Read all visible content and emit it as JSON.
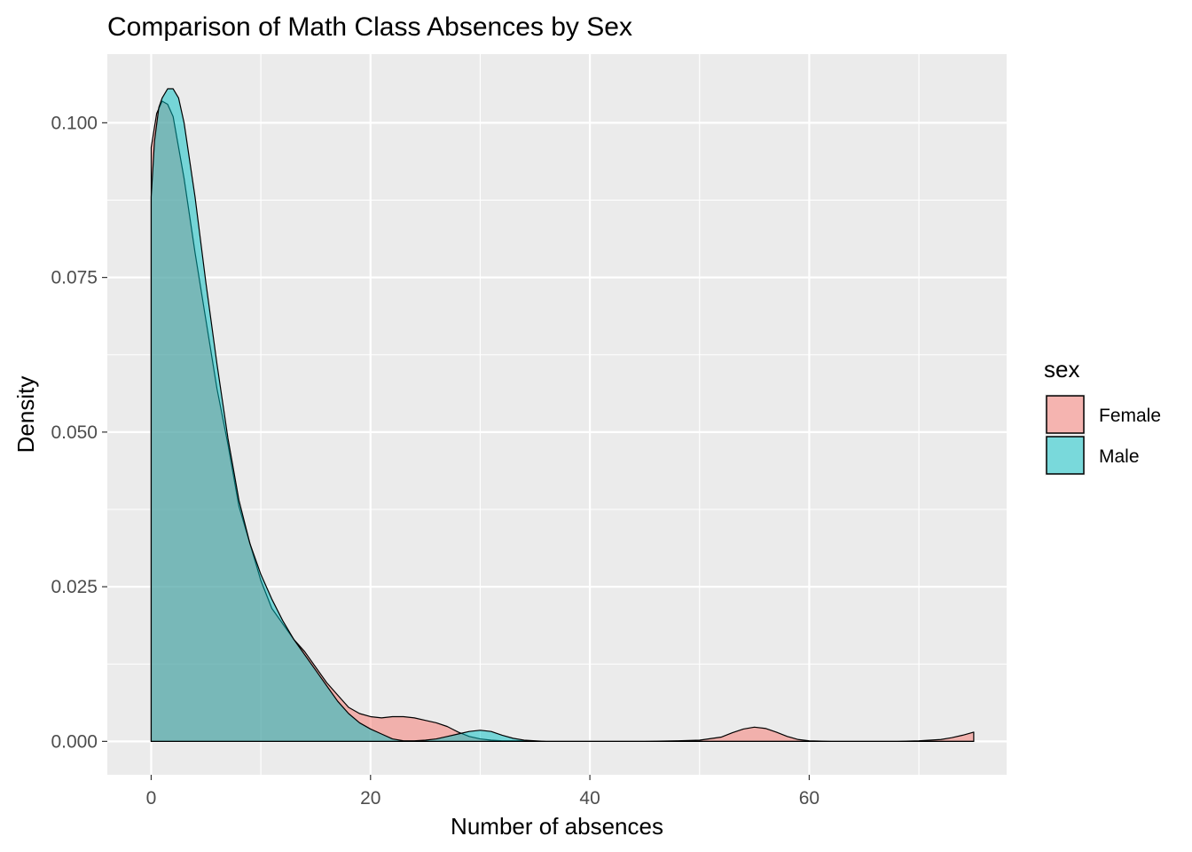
{
  "chart_data": {
    "type": "area",
    "title": "Comparison of Math Class Absences by Sex",
    "xlabel": "Number of absences",
    "ylabel": "Density",
    "xlim": [
      -4,
      78
    ],
    "ylim": [
      -0.0054,
      0.1111
    ],
    "x_ticks": [
      0,
      20,
      40,
      60
    ],
    "x_tick_labels": [
      "0",
      "20",
      "40",
      "60"
    ],
    "y_ticks": [
      0,
      0.025,
      0.05,
      0.075,
      0.1
    ],
    "y_tick_labels": [
      "0.000",
      "0.025",
      "0.050",
      "0.075",
      "0.100"
    ],
    "grid": true,
    "background": "#ebebeb",
    "legend": {
      "title": "sex",
      "position": "right"
    },
    "series": [
      {
        "name": "Female",
        "color": "#f8766d",
        "alpha": 0.5,
        "x": [
          0,
          0.5,
          1,
          1.5,
          2,
          3,
          4,
          5,
          6,
          7,
          8,
          9,
          10,
          11,
          12,
          13,
          14,
          15,
          16,
          17,
          18,
          19,
          20,
          21,
          22,
          23,
          24,
          25,
          26,
          27,
          28,
          29,
          30,
          31,
          32,
          33,
          34,
          36,
          40,
          45,
          48,
          50,
          52,
          53,
          54,
          55,
          56,
          57,
          58,
          59,
          60,
          62,
          65,
          68,
          70,
          72,
          73,
          74,
          75
        ],
        "values": [
          0.096,
          0.1015,
          0.1035,
          0.103,
          0.101,
          0.091,
          0.079,
          0.068,
          0.057,
          0.048,
          0.038,
          0.032,
          0.026,
          0.0215,
          0.019,
          0.0165,
          0.0145,
          0.012,
          0.0095,
          0.0075,
          0.0055,
          0.0045,
          0.004,
          0.0038,
          0.004,
          0.004,
          0.0038,
          0.0034,
          0.003,
          0.0024,
          0.0015,
          0.0008,
          0.0004,
          0.0002,
          0.0001,
          0.0001,
          0.0001,
          0,
          0,
          0,
          0.0001,
          0.0002,
          0.0007,
          0.0014,
          0.002,
          0.0023,
          0.0021,
          0.0015,
          0.0008,
          0.0003,
          0.0001,
          0,
          0,
          0,
          0.0001,
          0.0003,
          0.0006,
          0.001,
          0.0015
        ]
      },
      {
        "name": "Male",
        "color": "#00bfc4",
        "alpha": 0.5,
        "x": [
          0,
          0.3,
          0.7,
          1,
          1.5,
          2,
          2.5,
          3,
          4,
          5,
          6,
          7,
          8,
          9,
          10,
          11,
          12,
          13,
          14,
          15,
          16,
          17,
          18,
          19,
          20,
          21,
          22,
          23,
          24,
          25,
          26,
          27,
          28,
          29,
          30,
          31,
          32,
          33,
          34,
          35,
          36,
          40,
          50,
          60,
          75
        ],
        "values": [
          0.088,
          0.097,
          0.1025,
          0.104,
          0.1055,
          0.1055,
          0.104,
          0.1,
          0.088,
          0.074,
          0.061,
          0.049,
          0.039,
          0.032,
          0.027,
          0.023,
          0.0195,
          0.0165,
          0.014,
          0.0115,
          0.009,
          0.0065,
          0.0045,
          0.003,
          0.002,
          0.0012,
          0.0004,
          0.0001,
          0.0001,
          0.0002,
          0.0004,
          0.0008,
          0.0012,
          0.0016,
          0.0018,
          0.0016,
          0.001,
          0.0005,
          0.0002,
          0.0001,
          0,
          0,
          0,
          0,
          0
        ]
      }
    ]
  }
}
